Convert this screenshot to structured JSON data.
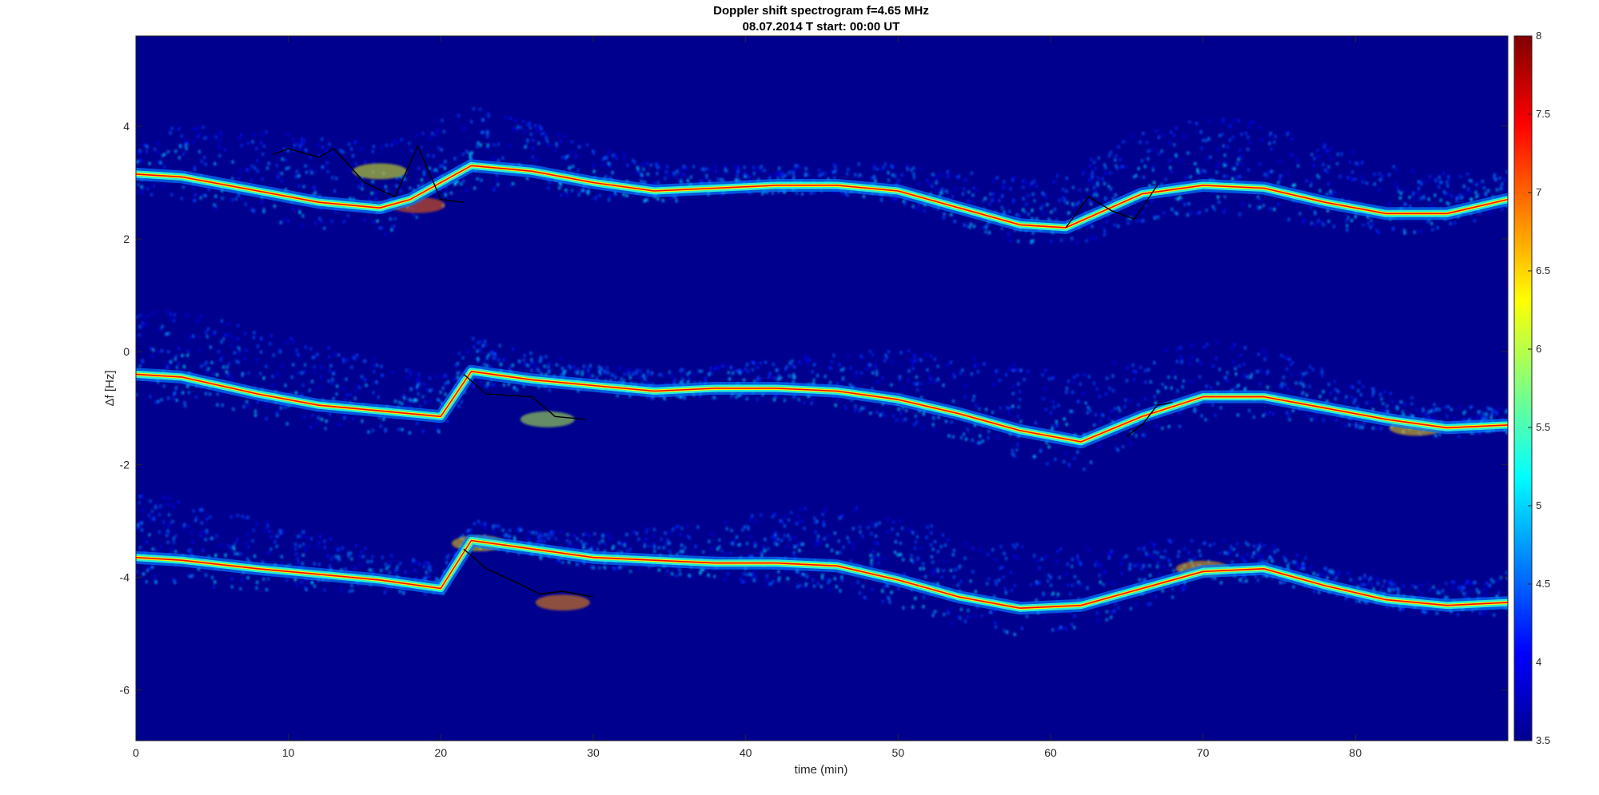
{
  "chart_data": {
    "type": "heatmap",
    "title": "Doppler shift spectrogram f=4.65 MHz",
    "subtitle": "08.07.2014   T start: 00:00 UT",
    "xlabel": "time (min)",
    "ylabel": "Δf [Hz]",
    "xlim": [
      0,
      90
    ],
    "ylim": [
      -6.9,
      5.6
    ],
    "x_ticks": [
      0,
      10,
      20,
      30,
      40,
      50,
      60,
      70,
      80
    ],
    "y_ticks": [
      4,
      2,
      0,
      -2,
      -4,
      -6
    ],
    "grid": false,
    "colormap": "jet",
    "colorbar": {
      "range": [
        3.5,
        8
      ],
      "ticks": [
        8,
        7.5,
        7,
        6.5,
        6,
        5.5,
        5,
        4.5,
        4,
        3.5
      ],
      "placement": "right"
    },
    "background_color": "#00008f",
    "series": [
      {
        "x": [
          0,
          3,
          8,
          12,
          16,
          18,
          22,
          26,
          30,
          34,
          38,
          42,
          46,
          50,
          54,
          58,
          61,
          66,
          70,
          74,
          78,
          82,
          86,
          90
        ],
        "y": [
          3.15,
          3.1,
          2.85,
          2.65,
          2.55,
          2.7,
          3.3,
          3.2,
          3.0,
          2.85,
          2.9,
          2.95,
          2.95,
          2.85,
          2.55,
          2.25,
          2.2,
          2.8,
          2.95,
          2.9,
          2.65,
          2.45,
          2.45,
          2.7
        ]
      },
      {
        "x": [
          0,
          3,
          8,
          12,
          16,
          20,
          22,
          26,
          30,
          34,
          38,
          42,
          46,
          50,
          54,
          58,
          62,
          66,
          70,
          74,
          78,
          82,
          86,
          90
        ],
        "y": [
          -0.4,
          -0.45,
          -0.75,
          -0.95,
          -1.05,
          -1.15,
          -0.35,
          -0.5,
          -0.6,
          -0.7,
          -0.65,
          -0.65,
          -0.7,
          -0.85,
          -1.1,
          -1.4,
          -1.6,
          -1.15,
          -0.8,
          -0.8,
          -1.0,
          -1.2,
          -1.35,
          -1.3
        ]
      },
      {
        "x": [
          0,
          3,
          8,
          12,
          16,
          20,
          22,
          26,
          30,
          34,
          38,
          42,
          46,
          50,
          54,
          58,
          62,
          66,
          70,
          74,
          78,
          82,
          86,
          90
        ],
        "y": [
          -3.65,
          -3.7,
          -3.85,
          -3.95,
          -4.05,
          -4.2,
          -3.35,
          -3.5,
          -3.65,
          -3.7,
          -3.75,
          -3.75,
          -3.8,
          -4.05,
          -4.35,
          -4.55,
          -4.5,
          -4.2,
          -3.9,
          -3.85,
          -4.15,
          -4.4,
          -4.5,
          -4.45
        ]
      }
    ],
    "overlay_traces": [
      {
        "x": [
          9,
          10,
          12,
          13,
          15,
          17,
          18.5,
          20,
          21.5
        ],
        "y": [
          3.5,
          3.6,
          3.45,
          3.6,
          3.0,
          2.75,
          3.65,
          2.7,
          2.65
        ]
      },
      {
        "x": [
          61,
          62.5,
          64,
          65.5,
          67
        ],
        "y": [
          2.2,
          2.75,
          2.5,
          2.35,
          2.95
        ]
      },
      {
        "x": [
          21.5,
          23,
          26,
          27.5,
          29.5
        ],
        "y": [
          -0.4,
          -0.75,
          -0.8,
          -1.15,
          -1.2
        ]
      },
      {
        "x": [
          65,
          66,
          67,
          68
        ],
        "y": [
          -1.5,
          -1.3,
          -0.95,
          -0.9
        ]
      },
      {
        "x": [
          21.5,
          23,
          25,
          26.5,
          28,
          30
        ],
        "y": [
          -3.5,
          -3.85,
          -4.1,
          -4.3,
          -4.25,
          -4.35
        ]
      }
    ],
    "bright_patches": [
      {
        "x": 18.5,
        "y": 2.6,
        "value": 7.0
      },
      {
        "x": 16.0,
        "y": 3.2,
        "value": 6.2
      },
      {
        "x": 28.0,
        "y": -4.45,
        "value": 6.8
      },
      {
        "x": 22.5,
        "y": -3.4,
        "value": 6.5
      },
      {
        "x": 27.0,
        "y": -1.2,
        "value": 6.0
      },
      {
        "x": 84.0,
        "y": -1.35,
        "value": 6.5
      },
      {
        "x": 70.0,
        "y": -3.85,
        "value": 6.6
      }
    ]
  }
}
